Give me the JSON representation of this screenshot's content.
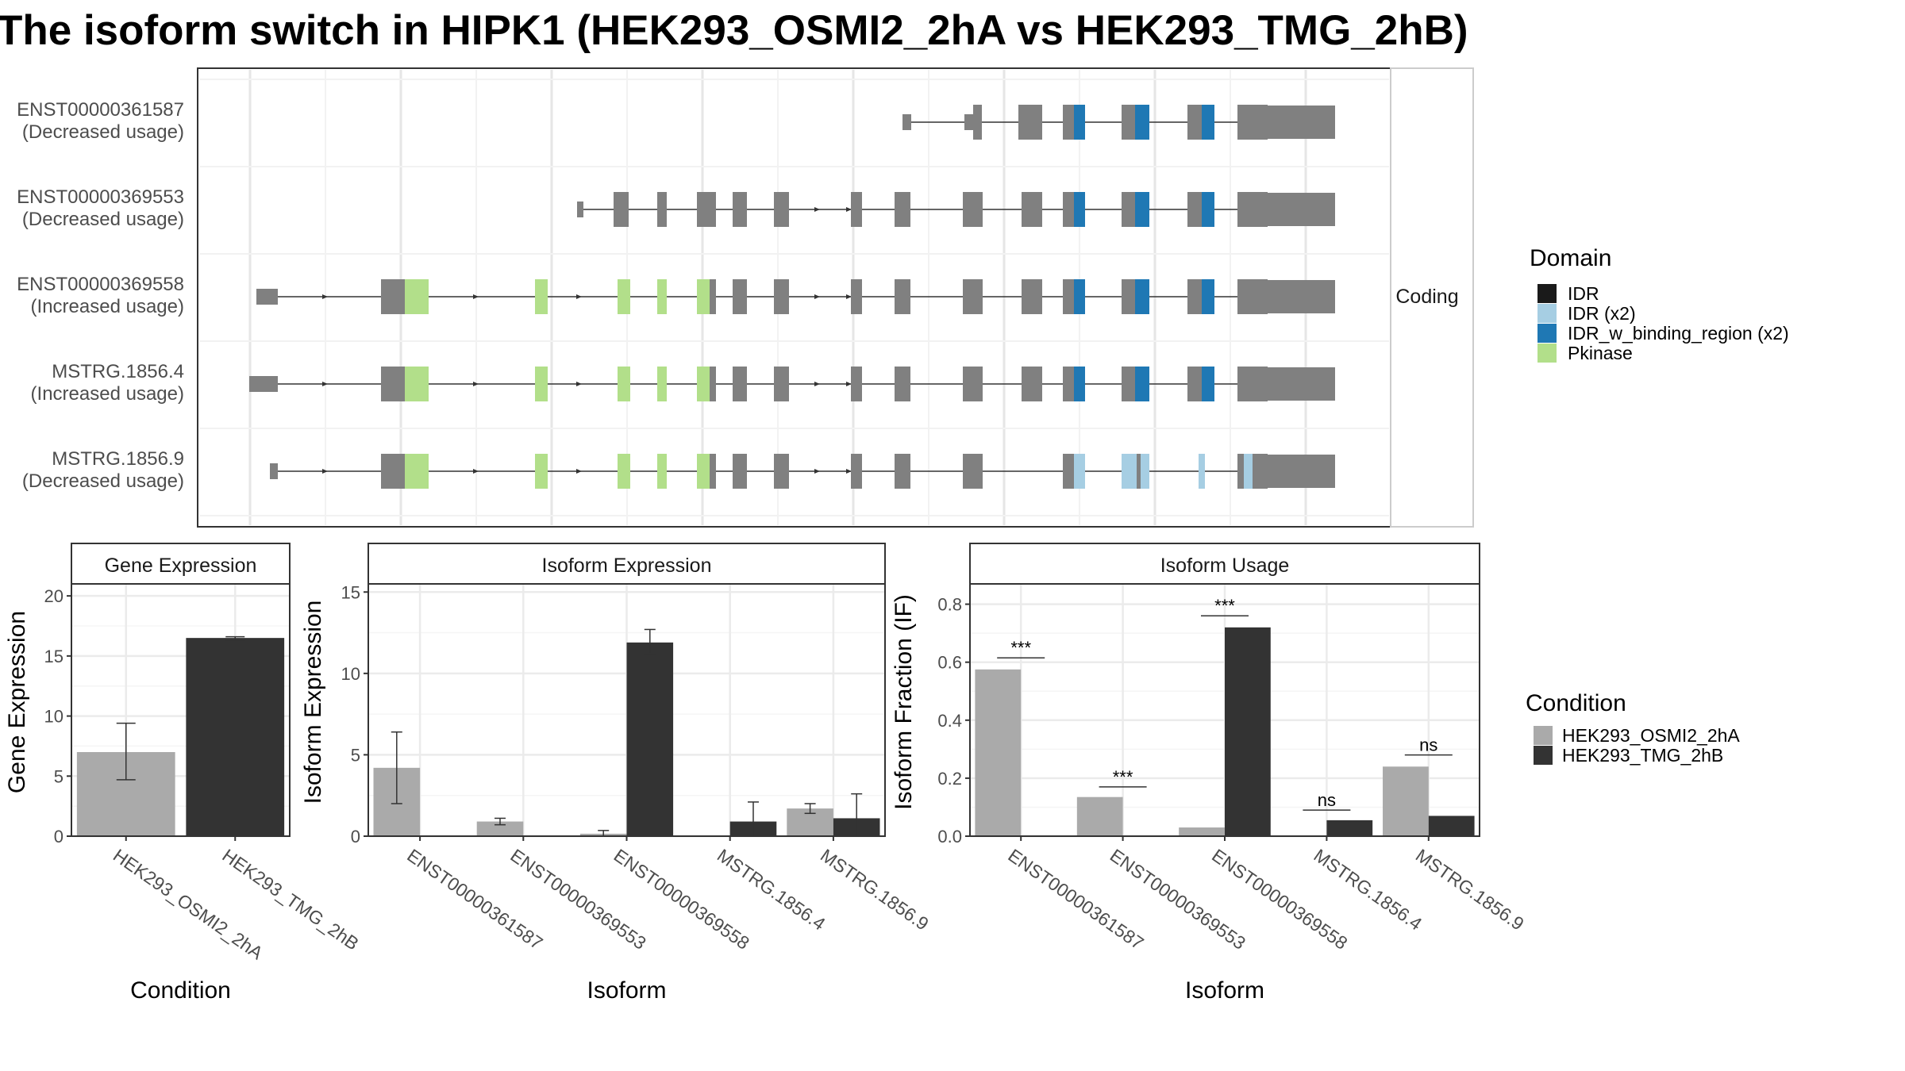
{
  "title": "The isoform switch in HIPK1 (HEK293_OSMI2_2hA vs HEK293_TMG_2hB)",
  "colors": {
    "exon": "#808080",
    "condition_a": "#AAAAAA",
    "condition_b": "#333333",
    "panel_border": "#333333",
    "strip_fill": "#FFFFFF",
    "grid": "#EBEBEB"
  },
  "transcript_panel": {
    "strip_label": "Coding",
    "domain_legend": {
      "title": "Domain",
      "items": [
        {
          "label": "IDR",
          "color": "#1A1A1A"
        },
        {
          "label": "IDR (x2)",
          "color": "#A6CEE3"
        },
        {
          "label": "IDR_w_binding_region (x2)",
          "color": "#1F78B4"
        },
        {
          "label": "Pkinase",
          "color": "#B2DF8A"
        }
      ]
    },
    "transcripts": [
      {
        "id": "ENST00000361587",
        "usage": "(Decreased usage)"
      },
      {
        "id": "ENST00000369553",
        "usage": "(Decreased usage)"
      },
      {
        "id": "ENST00000369558",
        "usage": "(Increased usage)"
      },
      {
        "id": "MSTRG.1856.4",
        "usage": "(Increased usage)"
      },
      {
        "id": "MSTRG.1856.9",
        "usage": "(Decreased usage)"
      }
    ]
  },
  "condition_legend": {
    "title": "Condition",
    "items": [
      {
        "label": "HEK293_OSMI2_2hA",
        "color": "#AAAAAA"
      },
      {
        "label": "HEK293_TMG_2hB",
        "color": "#333333"
      }
    ]
  },
  "chart_data": [
    {
      "type": "bar",
      "title": "Gene Expression",
      "xlabel": "Condition",
      "ylabel": "Gene Expression",
      "ylim": [
        0,
        20
      ],
      "yticks": [
        0,
        5,
        10,
        15,
        20
      ],
      "categories": [
        "HEK293_OSMI2_2hA",
        "HEK293_TMG_2hB"
      ],
      "values": [
        7.0,
        16.5
      ],
      "error_low": [
        4.7,
        16.3
      ],
      "error_high": [
        9.4,
        16.6
      ]
    },
    {
      "type": "bar",
      "title": "Isoform Expression",
      "xlabel": "Isoform",
      "ylabel": "Isoform Expression",
      "ylim": [
        0,
        15
      ],
      "yticks": [
        0,
        5,
        10,
        15
      ],
      "categories": [
        "ENST00000361587",
        "ENST00000369553",
        "ENST00000369558",
        "MSTRG.1856.4",
        "MSTRG.1856.9"
      ],
      "series": [
        {
          "name": "HEK293_OSMI2_2hA",
          "values": [
            4.2,
            0.9,
            0.15,
            0.0,
            1.7
          ],
          "error_low": [
            2.0,
            0.7,
            0.0,
            0.0,
            1.4
          ],
          "error_high": [
            6.4,
            1.1,
            0.35,
            0.0,
            2.0
          ]
        },
        {
          "name": "HEK293_TMG_2hB",
          "values": [
            0.0,
            0.0,
            11.9,
            0.9,
            1.1
          ],
          "error_low": [
            0.0,
            0.0,
            11.2,
            0.0,
            0.0
          ],
          "error_high": [
            0.0,
            0.0,
            12.7,
            2.1,
            2.6
          ]
        }
      ]
    },
    {
      "type": "bar",
      "title": "Isoform Usage",
      "xlabel": "Isoform",
      "ylabel": "Isoform Fraction (IF)",
      "ylim": [
        0,
        0.85
      ],
      "yticks": [
        0.0,
        0.2,
        0.4,
        0.6,
        0.8
      ],
      "categories": [
        "ENST00000361587",
        "ENST00000369553",
        "ENST00000369558",
        "MSTRG.1856.4",
        "MSTRG.1856.9"
      ],
      "series": [
        {
          "name": "HEK293_OSMI2_2hA",
          "values": [
            0.575,
            0.135,
            0.03,
            0.0,
            0.24
          ]
        },
        {
          "name": "HEK293_TMG_2hB",
          "values": [
            0.0,
            0.0,
            0.72,
            0.055,
            0.07
          ]
        }
      ],
      "significance": [
        {
          "label": "***",
          "y": 0.615
        },
        {
          "label": "***",
          "y": 0.17
        },
        {
          "label": "***",
          "y": 0.76
        },
        {
          "label": "ns",
          "y": 0.09
        },
        {
          "label": "ns",
          "y": 0.28
        }
      ]
    }
  ]
}
